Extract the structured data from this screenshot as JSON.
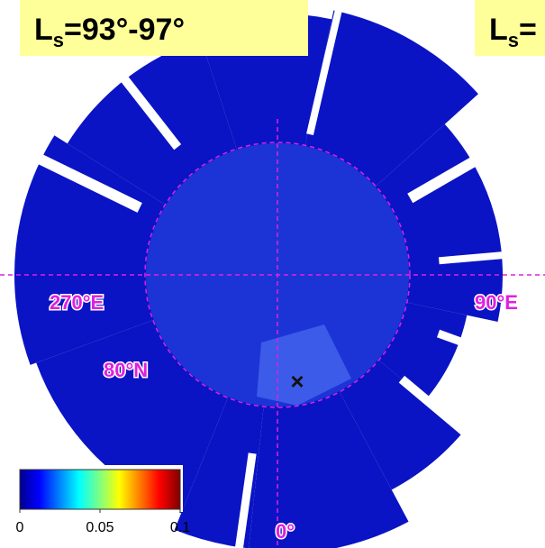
{
  "panels": [
    {
      "label": {
        "main": "L",
        "sub": "s",
        "rest": "=93°-97°"
      }
    },
    {
      "label": {
        "main": "L",
        "sub": "s",
        "rest": "="
      }
    }
  ],
  "map_labels": {
    "lon_west": "270°E",
    "lon_east": "90°E",
    "lat": "80°N",
    "lon_south": "0°"
  },
  "colorbar": {
    "lim": [
      0,
      0.1
    ],
    "ticks": [
      0,
      0.05,
      0.1
    ]
  }
}
